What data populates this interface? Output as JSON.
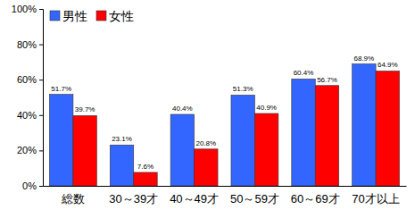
{
  "chart_data": {
    "type": "bar",
    "categories": [
      "総数",
      "30～39才",
      "40～49才",
      "50～59才",
      "60～69才",
      "70才以上"
    ],
    "series": [
      {
        "name": "男性",
        "color": "#3366ff",
        "values": [
          51.7,
          23.1,
          40.4,
          51.3,
          60.4,
          68.9
        ],
        "value_labels": [
          "51.7%",
          "23.1%",
          "40.4%",
          "51.3%",
          "60.4%",
          "68.9%"
        ]
      },
      {
        "name": "女性",
        "color": "#ff0000",
        "values": [
          39.7,
          7.6,
          20.8,
          40.9,
          56.7,
          64.9
        ],
        "value_labels": [
          "39.7%",
          "7.6%",
          "20.8%",
          "40.9%",
          "56.7%",
          "64.9%"
        ]
      }
    ],
    "ylim": [
      0,
      100
    ],
    "yticks": [
      {
        "value": 0,
        "label": "0%"
      },
      {
        "value": 20,
        "label": "20%"
      },
      {
        "value": 40,
        "label": "40%"
      },
      {
        "value": 60,
        "label": "60%"
      },
      {
        "value": 80,
        "label": "80%"
      },
      {
        "value": 100,
        "label": "100%"
      }
    ],
    "grid": false,
    "legend": "upper left",
    "data_labels": true
  }
}
